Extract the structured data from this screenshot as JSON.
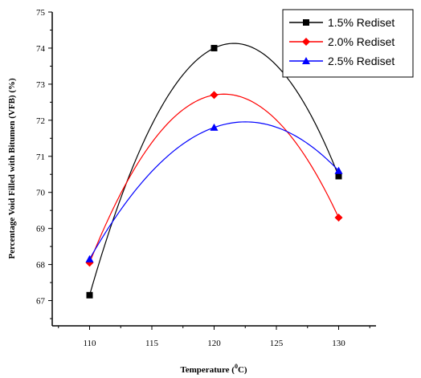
{
  "chart_data": {
    "type": "line",
    "x": [
      110,
      120,
      130
    ],
    "series": [
      {
        "name": "1.5% Rediset",
        "color": "#000000",
        "marker": "square",
        "values": [
          67.15,
          74.0,
          70.45
        ]
      },
      {
        "name": "2.0% Rediset",
        "color": "#ff0000",
        "marker": "diamond",
        "values": [
          68.05,
          72.7,
          69.3
        ]
      },
      {
        "name": "2.5% Rediset",
        "color": "#0000ff",
        "marker": "triangle",
        "values": [
          68.15,
          71.8,
          70.6
        ]
      }
    ],
    "xlim": [
      107,
      133
    ],
    "ylim": [
      66.3,
      75
    ],
    "xticks": [
      110,
      115,
      120,
      125,
      130
    ],
    "yticks": [
      67,
      68,
      69,
      70,
      71,
      72,
      73,
      74,
      75
    ],
    "xlabel": "Temperature (",
    "xlabel_sup": "0",
    "xlabel_end": "C)",
    "ylabel": "Percentage Void Filled with Bitumen (VFB) (%)",
    "legend_position": "top-right",
    "curve": "smooth-quadratic",
    "grid": false
  }
}
